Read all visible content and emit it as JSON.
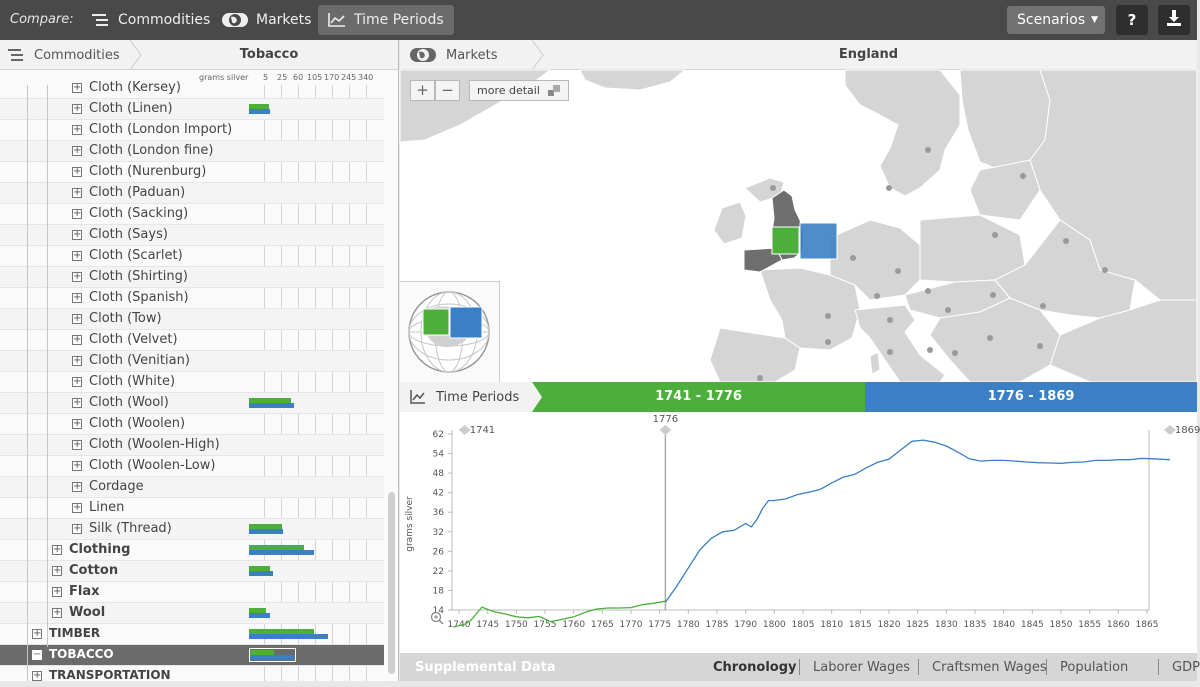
{
  "topbar": {
    "compare_label": "Compare:",
    "tabs": [
      {
        "label": "Commodities",
        "icon": "list-icon"
      },
      {
        "label": "Markets",
        "icon": "globe-icon"
      },
      {
        "label": "Time Periods",
        "icon": "chart-icon",
        "active": true
      }
    ],
    "scenarios_label": "Scenarios",
    "help_label": "?",
    "download_icon": "download-icon"
  },
  "left_panel": {
    "breadcrumb_root": "Commodities",
    "breadcrumb_current": "Tobacco",
    "scale_unit": "grams silver",
    "scale_ticks": [
      "5",
      "25",
      "60",
      "105",
      "170",
      "245",
      "340"
    ],
    "rows": [
      {
        "label": "Cloth (Kersey)",
        "level": 2,
        "toggle": "+",
        "green": 0,
        "blue": 0
      },
      {
        "label": "Cloth (Linen)",
        "level": 2,
        "toggle": "+",
        "green": 0.2,
        "blue": 0.21
      },
      {
        "label": "Cloth (London Import)",
        "level": 2,
        "toggle": "+",
        "green": 0,
        "blue": 0
      },
      {
        "label": "Cloth (London fine)",
        "level": 2,
        "toggle": "+",
        "green": 0,
        "blue": 0
      },
      {
        "label": "Cloth (Nurenburg)",
        "level": 2,
        "toggle": "+",
        "green": 0,
        "blue": 0
      },
      {
        "label": "Cloth (Paduan)",
        "level": 2,
        "toggle": "+",
        "green": 0,
        "blue": 0
      },
      {
        "label": "Cloth (Sacking)",
        "level": 2,
        "toggle": "+",
        "green": 0,
        "blue": 0
      },
      {
        "label": "Cloth (Says)",
        "level": 2,
        "toggle": "+",
        "green": 0,
        "blue": 0
      },
      {
        "label": "Cloth (Scarlet)",
        "level": 2,
        "toggle": "+",
        "green": 0,
        "blue": 0
      },
      {
        "label": "Cloth (Shirting)",
        "level": 2,
        "toggle": "+",
        "green": 0,
        "blue": 0
      },
      {
        "label": "Cloth (Spanish)",
        "level": 2,
        "toggle": "+",
        "green": 0,
        "blue": 0
      },
      {
        "label": "Cloth (Tow)",
        "level": 2,
        "toggle": "+",
        "green": 0,
        "blue": 0
      },
      {
        "label": "Cloth (Velvet)",
        "level": 2,
        "toggle": "+",
        "green": 0,
        "blue": 0
      },
      {
        "label": "Cloth (Venitian)",
        "level": 2,
        "toggle": "+",
        "green": 0,
        "blue": 0
      },
      {
        "label": "Cloth (White)",
        "level": 2,
        "toggle": "+",
        "green": 0,
        "blue": 0
      },
      {
        "label": "Cloth (Wool)",
        "level": 2,
        "toggle": "+",
        "green": 0.42,
        "blue": 0.45
      },
      {
        "label": "Cloth (Woolen)",
        "level": 2,
        "toggle": "+",
        "green": 0,
        "blue": 0
      },
      {
        "label": "Cloth (Woolen-High)",
        "level": 2,
        "toggle": "+",
        "green": 0,
        "blue": 0
      },
      {
        "label": "Cloth (Woolen-Low)",
        "level": 2,
        "toggle": "+",
        "green": 0,
        "blue": 0
      },
      {
        "label": "Cordage",
        "level": 2,
        "toggle": "+",
        "green": 0,
        "blue": 0
      },
      {
        "label": "Linen",
        "level": 2,
        "toggle": "+",
        "green": 0,
        "blue": 0
      },
      {
        "label": "Silk (Thread)",
        "level": 2,
        "toggle": "+",
        "green": 0.33,
        "blue": 0.34
      },
      {
        "label": "Clothing",
        "level": 1,
        "toggle": "+",
        "green": 0.55,
        "blue": 0.65
      },
      {
        "label": "Cotton",
        "level": 1,
        "toggle": "+",
        "green": 0.21,
        "blue": 0.24
      },
      {
        "label": "Flax",
        "level": 1,
        "toggle": "+",
        "green": 0,
        "blue": 0
      },
      {
        "label": "Wool",
        "level": 1,
        "toggle": "+",
        "green": 0.17,
        "blue": 0.21
      },
      {
        "label": "TIMBER",
        "level": 0,
        "toggle": "+",
        "green": 0.65,
        "blue": 0.79
      },
      {
        "label": "TOBACCO",
        "level": 0,
        "toggle": "−",
        "green": 0.25,
        "blue": 0.45,
        "selected": true
      },
      {
        "label": "TRANSPORTATION",
        "level": 0,
        "toggle": "+",
        "green": 0,
        "blue": 0
      }
    ]
  },
  "markets": {
    "breadcrumb_root": "Markets",
    "breadcrumb_current": "England",
    "zoom_in": "+",
    "zoom_out": "−",
    "more_detail": "more detail"
  },
  "time_periods": {
    "label": "Time Periods",
    "period1": "1741 - 1776",
    "period2": "1776 - 1869",
    "colors": {
      "period1": "#4caf3c",
      "period2": "#3b7fc4"
    }
  },
  "chart_data": {
    "type": "line",
    "ylabel": "grams silver",
    "yticks": [
      14,
      18,
      22,
      26,
      32,
      36,
      42,
      48,
      54,
      62
    ],
    "xticks": [
      1740,
      1745,
      1750,
      1755,
      1760,
      1765,
      1770,
      1775,
      1780,
      1785,
      1790,
      1800,
      1805,
      1810,
      1815,
      1820,
      1825,
      1830,
      1835,
      1840,
      1845,
      1850,
      1855,
      1860,
      1865
    ],
    "markers": [
      {
        "label": "1741",
        "x": 1741
      },
      {
        "label": "1776",
        "x": 1776
      },
      {
        "label": "1869",
        "x": 1869
      }
    ],
    "series": [
      {
        "x": [
          1739,
          1741,
          1742,
          1744,
          1746,
          1748,
          1750,
          1752,
          1754,
          1756,
          1758,
          1760,
          1762,
          1764,
          1766,
          1768,
          1770,
          1772,
          1774,
          1776
        ],
        "values": [
          10.5,
          11.1,
          11.8,
          14.6,
          13.7,
          13.2,
          12.6,
          12.4,
          12.7,
          11.6,
          12.1,
          12.6,
          13.5,
          14.2,
          14.4,
          14.4,
          14.5,
          15.1,
          15.4,
          15.8
        ]
      },
      {
        "x": [
          1776,
          1778,
          1780,
          1782,
          1784,
          1786,
          1788,
          1790,
          1792,
          1794,
          1796,
          1798,
          1800,
          1802,
          1804,
          1806,
          1808,
          1810,
          1812,
          1814,
          1816,
          1818,
          1820,
          1822,
          1824,
          1826,
          1828,
          1830,
          1832,
          1834,
          1836,
          1838,
          1840,
          1842,
          1844,
          1846,
          1848,
          1850,
          1852,
          1854,
          1856,
          1858,
          1860,
          1862,
          1864,
          1866,
          1869
        ],
        "values": [
          15.6,
          18.9,
          22.6,
          26.4,
          30.0,
          32.0,
          32.3,
          33.7,
          33.0,
          34.6,
          37.3,
          39.6,
          39.6,
          40.1,
          41.4,
          42.1,
          43.0,
          45.0,
          46.7,
          47.6,
          49.6,
          51.3,
          52.3,
          55.4,
          59.0,
          59.5,
          58.6,
          57.1,
          54.6,
          52.4,
          51.7,
          51.9,
          51.9,
          51.7,
          51.4,
          51.2,
          51.1,
          51.0,
          51.3,
          51.4,
          51.9,
          51.9,
          52.1,
          52.1,
          52.5,
          52.4,
          52.1
        ]
      }
    ]
  },
  "supplemental": {
    "title": "Supplemental Data",
    "tabs": [
      "Chronology",
      "Laborer Wages",
      "Craftsmen Wages",
      "Population",
      "GDP"
    ]
  }
}
